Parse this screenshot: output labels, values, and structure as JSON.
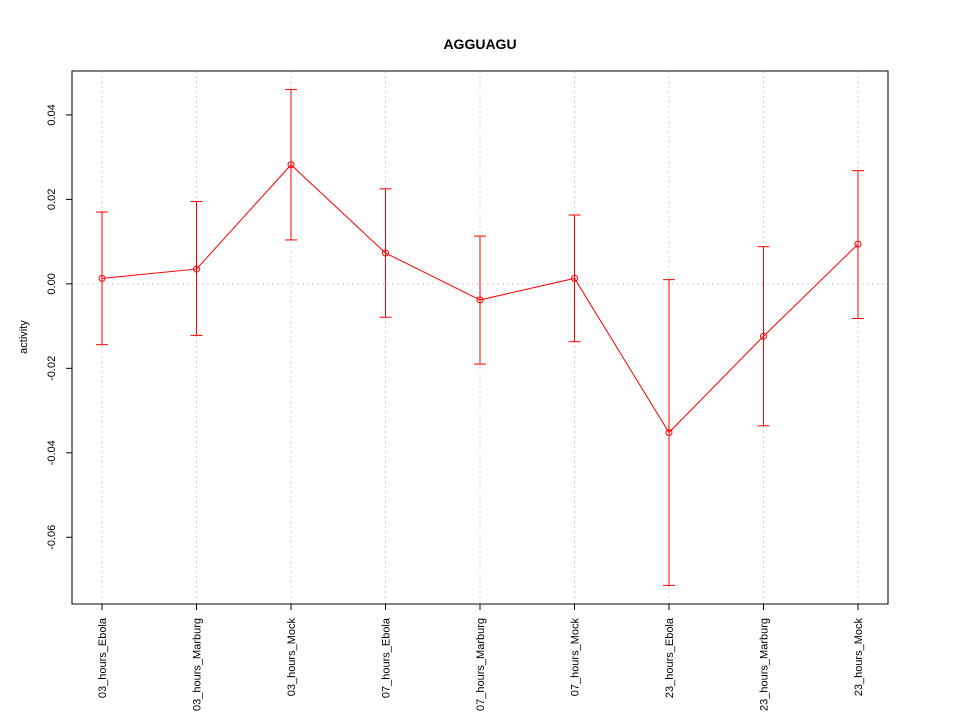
{
  "chart_data": {
    "type": "line",
    "title": "AGGUAGU",
    "xlabel": "",
    "ylabel": "activity",
    "categories": [
      "03_hours_Ebola",
      "03_hours_Marburg",
      "03_hours_Mock",
      "07_hours_Ebola",
      "07_hours_Marburg",
      "07_hours_Mock",
      "23_hours_Ebola",
      "23_hours_Marburg",
      "23_hours_Mock"
    ],
    "series": [
      {
        "values": [
          0.0013,
          0.0035,
          0.0282,
          0.0073,
          -0.0038,
          0.0013,
          -0.0352,
          -0.0124,
          0.0094
        ],
        "upper": [
          0.017,
          0.0195,
          0.046,
          0.0225,
          0.0113,
          0.0163,
          0.001,
          0.0088,
          0.0268
        ],
        "lower": [
          -0.0144,
          -0.0122,
          0.0104,
          -0.0079,
          -0.019,
          -0.0137,
          -0.0714,
          -0.0336,
          -0.0082
        ]
      }
    ],
    "yticks": [
      -0.06,
      -0.04,
      -0.02,
      0.0,
      0.02,
      0.04
    ],
    "ytick_labels": [
      "-0.06",
      "-0.04",
      "-0.02",
      "0.00",
      "0.02",
      "0.04"
    ],
    "ylim": [
      -0.0758,
      0.0504
    ],
    "grid": true,
    "colors": {
      "series": "#ff0000",
      "grid": "#d3d3d3",
      "frame": "#000000"
    }
  }
}
